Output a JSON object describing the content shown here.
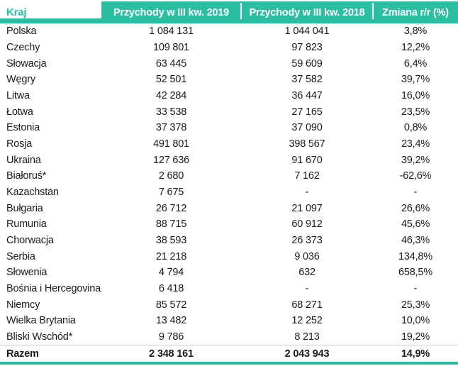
{
  "theme": {
    "accent": "#2abfa3",
    "text": "#1b1b1b",
    "divider": "#c6c6c6",
    "header_text": "#ffffff"
  },
  "chart_data": {
    "type": "table",
    "columns": [
      "Kraj",
      "Przychody w III kw. 2019",
      "Przychody w III kw. 2018",
      "Zmiana r/r (%)"
    ],
    "rows": [
      {
        "kraj": "Polska",
        "p2019": "1 084 131",
        "p2018": "1 044 041",
        "zmiana": "3,8%"
      },
      {
        "kraj": "Czechy",
        "p2019": "109 801",
        "p2018": "97 823",
        "zmiana": "12,2%"
      },
      {
        "kraj": "Słowacja",
        "p2019": "63 445",
        "p2018": "59 609",
        "zmiana": "6,4%"
      },
      {
        "kraj": "Węgry",
        "p2019": "52 501",
        "p2018": "37 582",
        "zmiana": "39,7%"
      },
      {
        "kraj": "Litwa",
        "p2019": "42 284",
        "p2018": "36 447",
        "zmiana": "16,0%"
      },
      {
        "kraj": "Łotwa",
        "p2019": "33 538",
        "p2018": "27 165",
        "zmiana": "23,5%"
      },
      {
        "kraj": "Estonia",
        "p2019": "37 378",
        "p2018": "37 090",
        "zmiana": "0,8%"
      },
      {
        "kraj": "Rosja",
        "p2019": "491 801",
        "p2018": "398 567",
        "zmiana": "23,4%"
      },
      {
        "kraj": "Ukraina",
        "p2019": "127 636",
        "p2018": "91 670",
        "zmiana": "39,2%"
      },
      {
        "kraj": "Białoruś*",
        "p2019": "2 680",
        "p2018": "7 162",
        "zmiana": "-62,6%"
      },
      {
        "kraj": "Kazachstan",
        "p2019": "7 675",
        "p2018": "-",
        "zmiana": "-"
      },
      {
        "kraj": "Bułgaria",
        "p2019": "26 712",
        "p2018": "21 097",
        "zmiana": "26,6%"
      },
      {
        "kraj": "Rumunia",
        "p2019": "88 715",
        "p2018": "60 912",
        "zmiana": "45,6%"
      },
      {
        "kraj": "Chorwacja",
        "p2019": "38 593",
        "p2018": "26 373",
        "zmiana": "46,3%"
      },
      {
        "kraj": "Serbia",
        "p2019": "21 218",
        "p2018": "9 036",
        "zmiana": "134,8%"
      },
      {
        "kraj": "Słowenia",
        "p2019": "4 794",
        "p2018": "632",
        "zmiana": "658,5%"
      },
      {
        "kraj": "Bośnia i Hercegovina",
        "p2019": "6 418",
        "p2018": "-",
        "zmiana": "-"
      },
      {
        "kraj": "Niemcy",
        "p2019": "85 572",
        "p2018": "68 271",
        "zmiana": "25,3%"
      },
      {
        "kraj": "Wielka Brytania",
        "p2019": "13 482",
        "p2018": "12 252",
        "zmiana": "10,0%"
      },
      {
        "kraj": "Bliski Wschód*",
        "p2019": "9 786",
        "p2018": "8 213",
        "zmiana": "19,2%"
      },
      {
        "kraj": "Razem",
        "p2019": "2 348 161",
        "p2018": "2 043 943",
        "zmiana": "14,9%"
      }
    ]
  }
}
